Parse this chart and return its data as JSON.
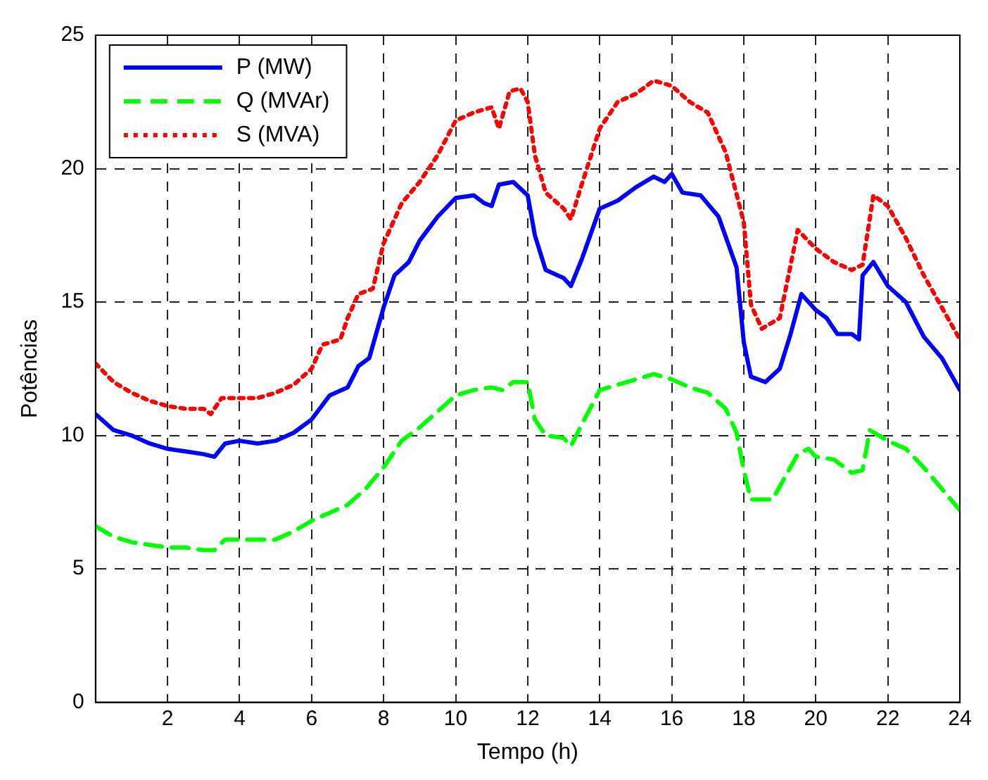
{
  "chart_data": {
    "type": "line",
    "xlabel": "Tempo (h)",
    "ylabel": "Potências",
    "xlim": [
      0,
      24
    ],
    "xticks": [
      2,
      4,
      6,
      8,
      10,
      12,
      14,
      16,
      18,
      20,
      22,
      24
    ],
    "ylim": [
      0,
      25
    ],
    "yticks": [
      0,
      5,
      10,
      15,
      20,
      25
    ],
    "grid": true,
    "legend": "top left",
    "marker": "none",
    "series": [
      {
        "name": "P (MW)",
        "color": "#0000ff",
        "line_style": "solid",
        "x": [
          0,
          0.5,
          1,
          1.5,
          2,
          2.5,
          3,
          3.3,
          3.6,
          4,
          4.5,
          5,
          5.5,
          6,
          6.5,
          7,
          7.3,
          7.6,
          8,
          8.3,
          8.7,
          9,
          9.5,
          10,
          10.5,
          10.8,
          11,
          11.2,
          11.6,
          12,
          12.2,
          12.5,
          13,
          13.2,
          13.5,
          14,
          14.5,
          15,
          15.5,
          15.8,
          16,
          16.3,
          16.8,
          17.3,
          17.8,
          18,
          18.2,
          18.6,
          19,
          19.3,
          19.6,
          20,
          20.3,
          20.6,
          21,
          21.2,
          21.3,
          21.6,
          22,
          22.5,
          23,
          23.5,
          24
        ],
        "values": [
          10.8,
          10.2,
          10.0,
          9.7,
          9.5,
          9.4,
          9.3,
          9.2,
          9.7,
          9.8,
          9.7,
          9.8,
          10.1,
          10.6,
          11.5,
          11.8,
          12.6,
          12.9,
          14.8,
          16.0,
          16.5,
          17.3,
          18.2,
          18.9,
          19.0,
          18.7,
          18.6,
          19.4,
          19.5,
          19.0,
          17.5,
          16.2,
          15.9,
          15.6,
          16.6,
          18.5,
          18.8,
          19.3,
          19.7,
          19.5,
          19.8,
          19.1,
          19.0,
          18.2,
          16.3,
          13.5,
          12.2,
          12.0,
          12.5,
          13.8,
          15.3,
          14.7,
          14.4,
          13.8,
          13.8,
          13.6,
          16.0,
          16.5,
          15.6,
          15.0,
          13.7,
          12.9,
          11.7
        ]
      },
      {
        "name": "Q (MVAr)",
        "color": "#00ff00",
        "line_style": "dashed",
        "x": [
          0,
          0.5,
          1,
          1.5,
          2,
          2.5,
          3,
          3.3,
          3.6,
          4,
          5,
          5.5,
          6,
          6.5,
          7,
          7.5,
          8,
          8.5,
          9,
          9.5,
          10,
          10.5,
          11,
          11.3,
          11.6,
          12,
          12.2,
          12.5,
          13,
          13.2,
          13.5,
          14,
          14.5,
          15,
          15.5,
          16,
          16.5,
          17,
          17.5,
          17.8,
          18,
          18.2,
          18.8,
          19.5,
          19.8,
          20,
          20.5,
          21,
          21.3,
          21.5,
          22,
          22.5,
          23,
          23.5,
          24
        ],
        "values": [
          6.6,
          6.2,
          6.0,
          5.9,
          5.8,
          5.8,
          5.7,
          5.7,
          6.1,
          6.1,
          6.1,
          6.4,
          6.8,
          7.1,
          7.4,
          8.0,
          8.8,
          9.8,
          10.3,
          10.9,
          11.5,
          11.7,
          11.8,
          11.7,
          12.0,
          12.0,
          10.6,
          10.0,
          9.9,
          9.6,
          10.4,
          11.7,
          11.9,
          12.1,
          12.3,
          12.1,
          11.8,
          11.6,
          11.0,
          10.1,
          8.7,
          7.6,
          7.6,
          9.3,
          9.5,
          9.2,
          9.1,
          8.6,
          8.7,
          10.2,
          9.8,
          9.5,
          8.8,
          8.0,
          7.2
        ]
      },
      {
        "name": "S (MVA)",
        "color": "#ff0000",
        "line_style": "dotted",
        "x": [
          0,
          0.5,
          1,
          1.5,
          2,
          2.5,
          3,
          3.2,
          3.5,
          4,
          4.5,
          5,
          5.5,
          6,
          6.3,
          6.8,
          7,
          7.3,
          7.7,
          8,
          8.5,
          9,
          9.5,
          10,
          10.5,
          11,
          11.2,
          11.5,
          11.8,
          12,
          12.2,
          12.5,
          13,
          13.2,
          13.5,
          14,
          14.5,
          15,
          15.5,
          16,
          16.5,
          17,
          17.5,
          18,
          18.2,
          18.5,
          19,
          19.5,
          20,
          20.5,
          21,
          21.3,
          21.6,
          22,
          22.5,
          23,
          23.5,
          24
        ],
        "values": [
          12.7,
          12.0,
          11.6,
          11.3,
          11.1,
          11.0,
          11.0,
          10.8,
          11.4,
          11.4,
          11.4,
          11.6,
          11.9,
          12.5,
          13.4,
          13.6,
          14.4,
          15.3,
          15.5,
          17.2,
          18.7,
          19.5,
          20.5,
          21.8,
          22.1,
          22.3,
          21.5,
          22.9,
          23.0,
          22.5,
          20.5,
          19.1,
          18.5,
          18.1,
          19.4,
          21.5,
          22.5,
          22.8,
          23.3,
          23.1,
          22.5,
          22.1,
          20.6,
          18.0,
          14.9,
          14.0,
          14.4,
          17.7,
          17.0,
          16.5,
          16.2,
          16.4,
          19.0,
          18.6,
          17.4,
          16.0,
          14.8,
          13.6
        ]
      }
    ]
  }
}
